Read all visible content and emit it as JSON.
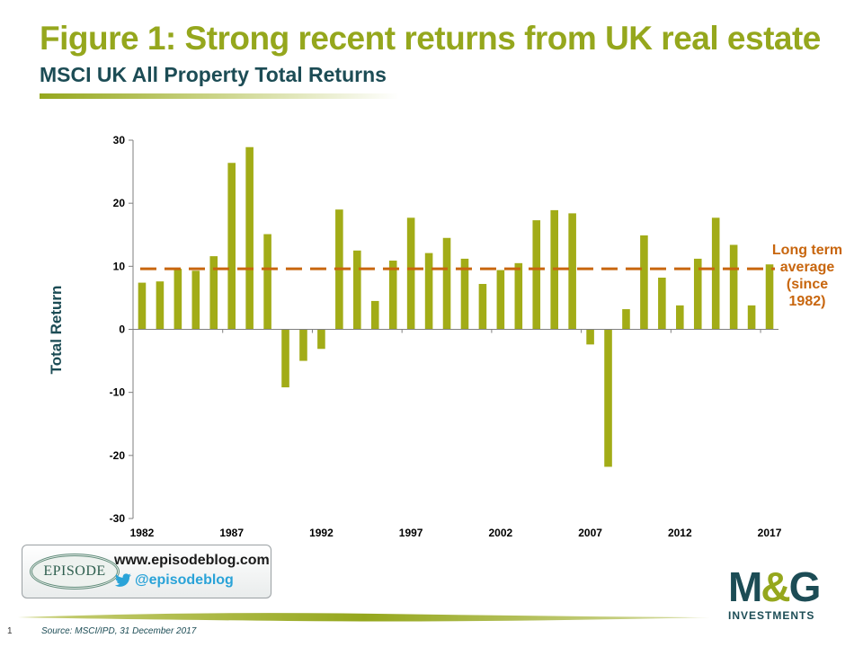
{
  "title": "Figure 1: Strong recent returns from UK real estate",
  "subtitle": "MSCI UK All Property Total Returns",
  "chart_data": {
    "type": "bar",
    "title": "Figure 1: Strong recent returns from UK real estate",
    "subtitle": "MSCI UK All Property Total Returns",
    "xlabel": "",
    "ylabel": "Total Return",
    "ylim": [
      -30,
      30
    ],
    "yticks": [
      30,
      20,
      10,
      0,
      -10,
      -20,
      -30
    ],
    "xtick_labels": [
      "1982",
      "1987",
      "1992",
      "1997",
      "2002",
      "2007",
      "2012",
      "2017"
    ],
    "categories": [
      1982,
      1983,
      1984,
      1985,
      1986,
      1987,
      1988,
      1989,
      1990,
      1991,
      1992,
      1993,
      1994,
      1995,
      1996,
      1997,
      1998,
      1999,
      2000,
      2001,
      2002,
      2003,
      2004,
      2005,
      2006,
      2007,
      2008,
      2009,
      2010,
      2011,
      2012,
      2013,
      2014,
      2015,
      2016,
      2017
    ],
    "values": [
      7.4,
      7.6,
      9.6,
      9.3,
      11.6,
      26.4,
      28.9,
      15.1,
      -9.2,
      -5.0,
      -3.1,
      19.0,
      12.5,
      4.5,
      10.9,
      17.7,
      12.1,
      14.5,
      11.2,
      7.2,
      9.4,
      10.5,
      17.3,
      18.9,
      18.4,
      -2.4,
      -21.8,
      3.2,
      14.9,
      8.2,
      3.8,
      11.2,
      17.7,
      13.4,
      3.8,
      10.3
    ],
    "bar_color": "#a2ac17",
    "reference_line": {
      "value": 9.6,
      "style": "dashed",
      "color": "#c8660e",
      "label_lines": [
        "Long term",
        "average",
        "(since",
        "1982)"
      ]
    },
    "grid": false,
    "legend": "none"
  },
  "branding": {
    "episode_logo_text": "EPISODE",
    "website": "www.episodeblog.com",
    "twitter": "@episodeblog",
    "mg_mark_left": "M",
    "mg_mark_amp": "&",
    "mg_mark_right": "G",
    "mg_sub": "INVESTMENTS"
  },
  "footer": {
    "page_number": "1",
    "source": "Source: MSCI/IPD, 31 December 2017"
  },
  "icons": [
    "twitter-icon"
  ]
}
